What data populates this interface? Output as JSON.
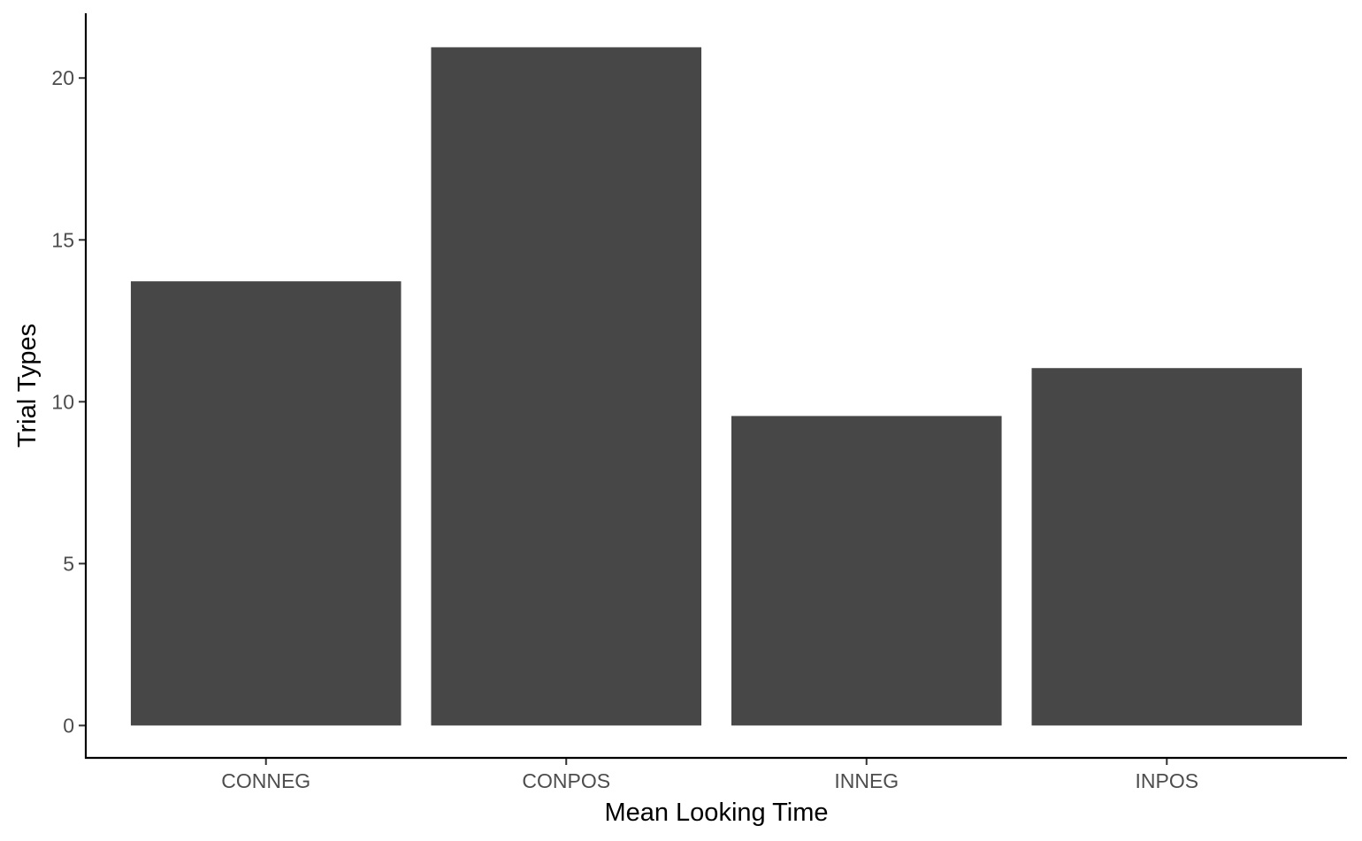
{
  "chart_data": {
    "type": "bar",
    "categories": [
      "CONNEG",
      "CONPOS",
      "INNEG",
      "INPOS"
    ],
    "values": [
      13.72,
      20.95,
      9.56,
      11.04
    ],
    "xlabel": "Mean Looking Time",
    "ylabel": "Trial Types",
    "ylim": [
      -1,
      22
    ],
    "yticks": [
      0,
      5,
      10,
      15,
      20
    ],
    "grid": false,
    "legend": "none",
    "bar_color": "#474747"
  }
}
